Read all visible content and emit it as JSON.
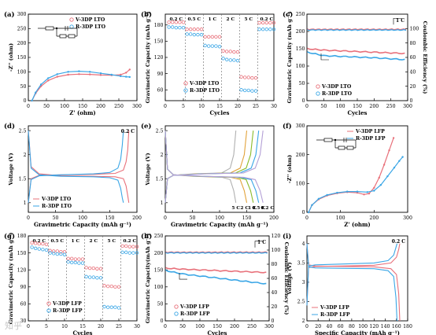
{
  "colors": {
    "v": "#e8707a",
    "r": "#3aa6e6",
    "axis": "#000000",
    "dash": "#555555"
  },
  "watermark": "知乎",
  "chart_data": [
    {
      "id": "a",
      "panel_label": "(a)",
      "type": "line",
      "xlabel": "Z' (ohm)",
      "ylabel": "-Z'' (ohm)",
      "xlim": [
        0,
        300
      ],
      "ylim": [
        0,
        300
      ],
      "xticks": [
        0,
        50,
        100,
        150,
        200,
        250,
        300
      ],
      "yticks": [
        0,
        50,
        100,
        150,
        200,
        250,
        300
      ],
      "legend": "top-left",
      "circuit": "Rs-CPE-Rct-Zw",
      "series": [
        {
          "name": "V-3DP LTO",
          "color": "v",
          "x": [
            10,
            20,
            35,
            55,
            80,
            110,
            140,
            170,
            200,
            230,
            255,
            270,
            280
          ],
          "y": [
            0,
            25,
            50,
            70,
            83,
            90,
            92,
            91,
            89,
            88,
            90,
            97,
            108
          ]
        },
        {
          "name": "R-3DP LTO",
          "color": "r",
          "x": [
            10,
            20,
            35,
            55,
            80,
            110,
            140,
            170,
            200,
            230,
            255,
            270,
            280
          ],
          "y": [
            0,
            28,
            56,
            78,
            92,
            100,
            102,
            100,
            95,
            90,
            85,
            83,
            82
          ]
        }
      ]
    },
    {
      "id": "b",
      "panel_label": "(b)",
      "type": "scatter",
      "xlabel": "Cycles",
      "ylabel": "Gravimetric Capacity (mAh g⁻¹)",
      "xlim": [
        0,
        30
      ],
      "ylim": [
        40,
        200
      ],
      "xticks": [
        0,
        5,
        10,
        15,
        20,
        25,
        30
      ],
      "yticks": [
        60,
        90,
        120,
        150,
        180
      ],
      "legend": "bottom-left",
      "rates": [
        "0.2 C",
        "0.5 C",
        "1 C",
        "2 C",
        "5 C",
        "0.2 C"
      ],
      "rate_boundaries": [
        5,
        10,
        15,
        20,
        25
      ],
      "series": [
        {
          "name": "V-3DP LTO",
          "color": "v",
          "values": [
            185,
            185,
            185,
            185,
            185,
            172,
            172,
            172,
            172,
            172,
            158,
            158,
            158,
            158,
            158,
            132,
            131,
            131,
            130,
            130,
            84,
            83,
            83,
            82,
            82,
            184,
            184,
            184,
            184,
            184
          ]
        },
        {
          "name": "R-3DP LTO",
          "color": "r",
          "values": [
            176,
            176,
            175,
            175,
            175,
            163,
            163,
            162,
            162,
            162,
            142,
            141,
            141,
            141,
            140,
            118,
            116,
            115,
            115,
            114,
            60,
            59,
            59,
            58,
            58,
            172,
            172,
            172,
            172,
            172
          ]
        }
      ]
    },
    {
      "id": "c",
      "panel_label": "(c)",
      "type": "line",
      "xlabel": "Cycles",
      "ylabel": "Gravimetric Capacity (mAh g⁻¹)",
      "y2label": "Coulombic Efficiency (%)",
      "xlim": [
        0,
        300
      ],
      "ylim": [
        0,
        250
      ],
      "y2lim": [
        0,
        120
      ],
      "xticks": [
        0,
        50,
        100,
        150,
        200,
        250,
        300
      ],
      "yticks": [
        0,
        50,
        100,
        150,
        200,
        250
      ],
      "y2ticks": [
        0,
        20,
        40,
        60,
        80,
        100
      ],
      "legend": "bottom-left",
      "rate": "1 C",
      "series": [
        {
          "name": "V-3DP LTO",
          "color": "v",
          "x": [
            1,
            50,
            100,
            150,
            200,
            250,
            300
          ],
          "y": [
            150,
            146,
            144,
            142,
            140,
            138,
            136
          ]
        },
        {
          "name": "R-3DP LTO",
          "color": "r",
          "x": [
            1,
            50,
            100,
            150,
            200,
            250,
            300
          ],
          "y": [
            140,
            130,
            128,
            126,
            124,
            121,
            118
          ]
        }
      ],
      "efficiency": [
        {
          "color": "v",
          "value": 99
        },
        {
          "color": "r",
          "value": 98
        }
      ]
    },
    {
      "id": "d",
      "panel_label": "(d)",
      "type": "line",
      "xlabel": "Gravimetric Capacity (mAh g⁻¹)",
      "ylabel": "Voltage (V)",
      "xlim": [
        0,
        200
      ],
      "ylim": [
        0.8,
        2.6
      ],
      "xticks": [
        0,
        50,
        100,
        150,
        200
      ],
      "yticks": [
        1.0,
        1.5,
        2.0,
        2.5
      ],
      "legend": "bottom-left",
      "rate": "0.2 C",
      "series": [
        {
          "name": "V-3DP LTO",
          "color": "v",
          "x": [
            0,
            5,
            20,
            60,
            120,
            160,
            175,
            180,
            183,
            185
          ],
          "y": [
            2.5,
            1.75,
            1.6,
            1.56,
            1.55,
            1.54,
            1.5,
            1.35,
            1.15,
            1.0
          ]
        },
        {
          "name": "",
          "color": "v",
          "x": [
            0,
            5,
            20,
            60,
            120,
            160,
            175,
            180,
            183,
            185
          ],
          "y": [
            1.0,
            1.5,
            1.57,
            1.58,
            1.59,
            1.61,
            1.68,
            1.85,
            2.1,
            2.5
          ]
        },
        {
          "name": "R-3DP LTO",
          "color": "r",
          "x": [
            0,
            5,
            20,
            60,
            120,
            150,
            165,
            170,
            173,
            175
          ],
          "y": [
            2.5,
            1.72,
            1.58,
            1.55,
            1.54,
            1.52,
            1.47,
            1.3,
            1.1,
            1.0
          ]
        },
        {
          "name": "",
          "color": "r",
          "x": [
            0,
            5,
            20,
            60,
            120,
            150,
            165,
            170,
            173,
            175
          ],
          "y": [
            1.0,
            1.48,
            1.56,
            1.58,
            1.6,
            1.63,
            1.72,
            1.9,
            2.2,
            2.5
          ]
        }
      ]
    },
    {
      "id": "e",
      "panel_label": "(e)",
      "type": "line",
      "xlabel": "Gravimetric Capacity (mAh g⁻¹)",
      "ylabel": "Voltage (V)",
      "xlim": [
        0,
        200
      ],
      "ylim": [
        0.8,
        2.6
      ],
      "xticks": [
        0,
        50,
        100,
        150,
        200
      ],
      "yticks": [
        1.0,
        1.5,
        2.0,
        2.5
      ],
      "rates": [
        "5 C",
        "2 C",
        "1 C",
        "0.5 C",
        "0.2 C"
      ],
      "curves": [
        {
          "color": "#b0b0b0",
          "cap": 130
        },
        {
          "color": "#e2a33b",
          "cap": 150
        },
        {
          "color": "#8bbb2a",
          "cap": 162
        },
        {
          "color": "#3aa6e6",
          "cap": 172
        },
        {
          "color": "#b4a0d6",
          "cap": 180
        }
      ]
    },
    {
      "id": "f",
      "panel_label": "(f)",
      "type": "line",
      "xlabel": "Z' (ohm)",
      "ylabel": "-Z'' (ohm)",
      "xlim": [
        0,
        300
      ],
      "ylim": [
        0,
        300
      ],
      "xticks": [
        0,
        100,
        200,
        300
      ],
      "yticks": [
        0,
        100,
        200,
        300
      ],
      "legend": "top-left",
      "circuit": "Rs-CPE-Rct-Zw",
      "series": [
        {
          "name": "V-3DP LFP",
          "color": "v",
          "x": [
            5,
            15,
            35,
            60,
            90,
            120,
            150,
            170,
            185,
            200,
            215,
            230,
            245,
            258
          ],
          "y": [
            0,
            25,
            45,
            58,
            66,
            70,
            68,
            62,
            65,
            85,
            120,
            165,
            215,
            258
          ]
        },
        {
          "name": "R-3DP LFP",
          "color": "r",
          "x": [
            5,
            15,
            35,
            60,
            90,
            120,
            150,
            180,
            200,
            220,
            240,
            260,
            275,
            285
          ],
          "y": [
            0,
            25,
            47,
            60,
            68,
            72,
            72,
            70,
            75,
            95,
            125,
            155,
            178,
            192
          ]
        }
      ]
    },
    {
      "id": "g",
      "panel_label": "(g)",
      "type": "scatter",
      "xlabel": "Cycles",
      "ylabel": "Gravimetric Capacity (mAh g⁻¹)",
      "xlim": [
        0,
        30
      ],
      "ylim": [
        30,
        180
      ],
      "xticks": [
        0,
        5,
        10,
        15,
        20,
        25,
        30
      ],
      "yticks": [
        30,
        60,
        90,
        120,
        150,
        180
      ],
      "legend": "bottom-left",
      "rates": [
        "0.2 C",
        "0.5 C",
        "1 C",
        "2 C",
        "5 C",
        "0.2 C"
      ],
      "rate_boundaries": [
        5,
        10,
        15,
        20,
        25
      ],
      "series": [
        {
          "name": "V-3DP LFP",
          "color": "v",
          "values": [
            168,
            167,
            166,
            166,
            165,
            154,
            153,
            153,
            152,
            152,
            140,
            140,
            139,
            139,
            139,
            124,
            123,
            123,
            122,
            122,
            92,
            91,
            91,
            90,
            90,
            162,
            162,
            161,
            161,
            161
          ]
        },
        {
          "name": "R-3DP LFP",
          "color": "r",
          "values": [
            160,
            158,
            157,
            156,
            155,
            150,
            149,
            148,
            148,
            147,
            134,
            133,
            133,
            132,
            132,
            108,
            107,
            107,
            106,
            106,
            55,
            54,
            54,
            54,
            53,
            151,
            151,
            150,
            150,
            150
          ]
        }
      ]
    },
    {
      "id": "h",
      "panel_label": "(h)",
      "type": "line",
      "xlabel": "Cycles",
      "ylabel": "Gravimetric Capacity(mAh g⁻¹)",
      "y2label": "Coulombic Efficiency (%)",
      "xlim": [
        0,
        300
      ],
      "ylim": [
        0,
        250
      ],
      "y2lim": [
        0,
        120
      ],
      "xticks": [
        0,
        50,
        100,
        150,
        200,
        250,
        300
      ],
      "yticks": [
        0,
        50,
        100,
        150,
        200,
        250
      ],
      "y2ticks": [
        0,
        20,
        40,
        60,
        80,
        100,
        120
      ],
      "legend": "bottom-left",
      "rate": "1 C",
      "series": [
        {
          "name": "V-3DP LFP",
          "color": "v",
          "x": [
            1,
            50,
            100,
            150,
            200,
            250,
            300
          ],
          "y": [
            155,
            152,
            150,
            148,
            146,
            144,
            142
          ]
        },
        {
          "name": "R-3DP LFP",
          "color": "r",
          "x": [
            1,
            50,
            100,
            150,
            200,
            250,
            300
          ],
          "y": [
            148,
            138,
            132,
            126,
            120,
            114,
            108
          ]
        }
      ],
      "efficiency": [
        {
          "color": "v",
          "value": 97
        },
        {
          "color": "r",
          "value": 96
        }
      ]
    },
    {
      "id": "i",
      "panel_label": "(i)",
      "type": "line",
      "xlabel": "Specific Capacity (mAh g⁻¹)",
      "ylabel": "Voltage (V)",
      "xlim": [
        0,
        180
      ],
      "ylim": [
        2.0,
        4.2
      ],
      "xticks": [
        0,
        20,
        40,
        60,
        80,
        100,
        120,
        140,
        160,
        180
      ],
      "yticks": [
        2.0,
        2.5,
        3.0,
        3.5,
        4.0
      ],
      "legend": "bottom-left",
      "rate": "0.2 C",
      "series": [
        {
          "name": "V-3DP LFP",
          "color": "v",
          "x": [
            0,
            3,
            15,
            60,
            120,
            150,
            160,
            164,
            166
          ],
          "y": [
            2.4,
            3.38,
            3.41,
            3.42,
            3.44,
            3.5,
            3.65,
            3.85,
            4.0
          ]
        },
        {
          "name": "",
          "color": "v",
          "x": [
            0,
            3,
            15,
            60,
            120,
            150,
            160,
            164,
            166
          ],
          "y": [
            4.0,
            3.45,
            3.42,
            3.41,
            3.4,
            3.35,
            3.2,
            2.7,
            2.0
          ]
        },
        {
          "name": "R-3DP LFP",
          "color": "r",
          "x": [
            0,
            3,
            15,
            60,
            120,
            145,
            155,
            159,
            161
          ],
          "y": [
            2.4,
            3.42,
            3.45,
            3.47,
            3.5,
            3.56,
            3.7,
            3.9,
            4.0
          ]
        },
        {
          "name": "",
          "color": "r",
          "x": [
            0,
            3,
            15,
            60,
            120,
            145,
            155,
            159,
            161
          ],
          "y": [
            4.0,
            3.4,
            3.37,
            3.36,
            3.35,
            3.3,
            3.15,
            2.6,
            2.0
          ]
        }
      ]
    }
  ]
}
